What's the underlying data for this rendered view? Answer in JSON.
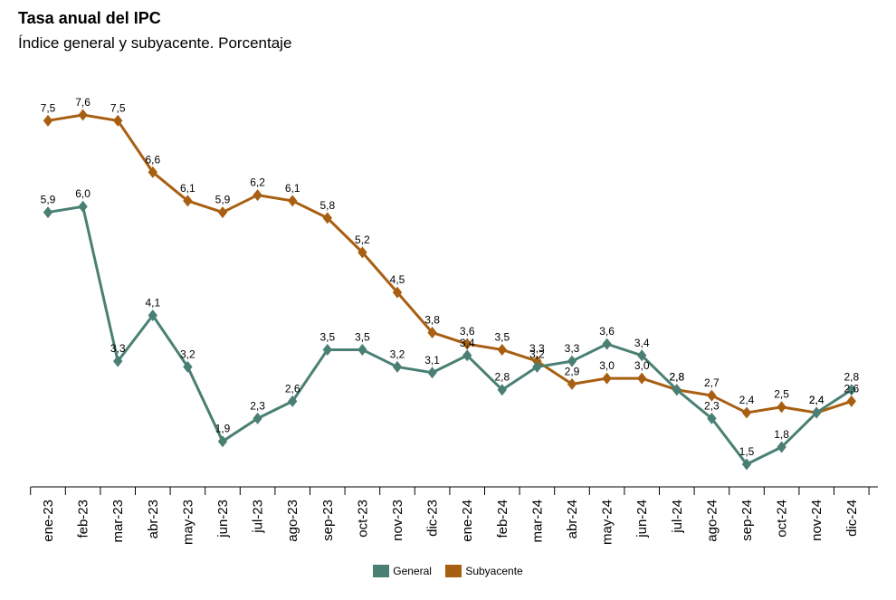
{
  "chart_data": {
    "type": "line",
    "title": "Tasa anual del IPC",
    "subtitle": "Índice general y subyacente. Porcentaje",
    "categories": [
      "ene-23",
      "feb-23",
      "mar-23",
      "abr-23",
      "may-23",
      "jun-23",
      "jul-23",
      "ago-23",
      "sep-23",
      "oct-23",
      "nov-23",
      "dic-23",
      "ene-24",
      "feb-24",
      "mar-24",
      "abr-24",
      "may-24",
      "jun-24",
      "jul-24",
      "ago-24",
      "sep-24",
      "oct-24",
      "nov-24",
      "dic-24"
    ],
    "series": [
      {
        "name": "General",
        "color": "#4a8074",
        "values": [
          5.9,
          6.0,
          3.3,
          4.1,
          3.2,
          1.9,
          2.3,
          2.6,
          3.5,
          3.5,
          3.2,
          3.1,
          3.4,
          2.8,
          3.2,
          3.3,
          3.6,
          3.4,
          2.8,
          2.3,
          1.5,
          1.8,
          2.4,
          2.8
        ],
        "labels": [
          "5,9",
          "6,0",
          "3,3",
          "4,1",
          "3,2",
          "1,9",
          "2,3",
          "2,6",
          "3,5",
          "3,5",
          "3,2",
          "3,1",
          "3,4",
          "2,8",
          "3,2",
          "3,3",
          "3,6",
          "3,4",
          "2,8",
          "2,3",
          "1,5",
          "1,8",
          "2,4",
          "2,8"
        ]
      },
      {
        "name": "Subyacente",
        "color": "#a85f12",
        "values": [
          7.5,
          7.6,
          7.5,
          6.6,
          6.1,
          5.9,
          6.2,
          6.1,
          5.8,
          5.2,
          4.5,
          3.8,
          3.6,
          3.5,
          3.3,
          2.9,
          3.0,
          3.0,
          2.8,
          2.7,
          2.4,
          2.5,
          2.4,
          2.6
        ],
        "labels": [
          "7,5",
          "7,6",
          "7,5",
          "6,6",
          "6,1",
          "5,9",
          "6,2",
          "6,1",
          "5,8",
          "5,2",
          "4,5",
          "3,8",
          "3,6",
          "3,5",
          "3,3",
          "2,9",
          "3,0",
          "3,0",
          "2,8",
          "2,7",
          "2,4",
          "2,5",
          "2,4",
          "2,6"
        ]
      }
    ],
    "grid": false,
    "legend": "bottom-center"
  }
}
